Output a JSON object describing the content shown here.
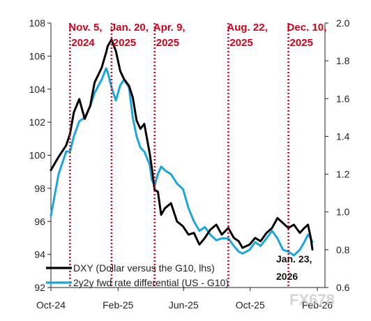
{
  "chart_data": {
    "type": "line",
    "x_ticks": [
      "Oct-24",
      "Feb-25",
      "Jun-25",
      "Oct-25",
      "Feb-26"
    ],
    "x_tick_dates": [
      "2024-10-01",
      "2025-02-01",
      "2025-06-01",
      "2025-10-01",
      "2026-02-01"
    ],
    "x_range": [
      "2024-10-01",
      "2026-02-15"
    ],
    "y_left": {
      "range": [
        92,
        108
      ],
      "ticks": [
        "92",
        "94",
        "96",
        "98",
        "100",
        "102",
        "104",
        "106",
        "108"
      ]
    },
    "y_right": {
      "range": [
        0.6,
        2.0
      ],
      "ticks": [
        "0.6",
        "0.8",
        "1.0",
        "1.2",
        "1.4",
        "1.6",
        "1.8",
        "2.0"
      ]
    },
    "grid": false,
    "legend_position": "bottom-left",
    "series": [
      {
        "name": "DXY (Dollar versus the G10, lhs)",
        "axis": "left",
        "color": "#000000",
        "points": [
          [
            "2024-10-01",
            99.1
          ],
          [
            "2024-10-15",
            99.9
          ],
          [
            "2024-10-29",
            100.6
          ],
          [
            "2024-11-05",
            101.3
          ],
          [
            "2024-11-12",
            102.6
          ],
          [
            "2024-11-22",
            103.4
          ],
          [
            "2024-12-02",
            102.2
          ],
          [
            "2024-12-12",
            103.0
          ],
          [
            "2024-12-20",
            104.4
          ],
          [
            "2025-01-02",
            105.3
          ],
          [
            "2025-01-10",
            106.2
          ],
          [
            "2025-01-13",
            106.6
          ],
          [
            "2025-01-20",
            107.0
          ],
          [
            "2025-01-28",
            106.3
          ],
          [
            "2025-02-05",
            105.1
          ],
          [
            "2025-02-12",
            104.6
          ],
          [
            "2025-02-21",
            104.2
          ],
          [
            "2025-02-28",
            103.5
          ],
          [
            "2025-03-07",
            102.1
          ],
          [
            "2025-03-14",
            101.6
          ],
          [
            "2025-03-21",
            101.9
          ],
          [
            "2025-03-31",
            100.1
          ],
          [
            "2025-04-04",
            99.2
          ],
          [
            "2025-04-09",
            97.9
          ],
          [
            "2025-04-15",
            97.8
          ],
          [
            "2025-04-21",
            96.4
          ],
          [
            "2025-04-28",
            96.8
          ],
          [
            "2025-05-09",
            97.1
          ],
          [
            "2025-05-20",
            96.0
          ],
          [
            "2025-05-31",
            95.7
          ],
          [
            "2025-06-10",
            95.2
          ],
          [
            "2025-06-20",
            95.3
          ],
          [
            "2025-06-30",
            94.6
          ],
          [
            "2025-07-10",
            95.0
          ],
          [
            "2025-07-20",
            95.5
          ],
          [
            "2025-07-31",
            95.8
          ],
          [
            "2025-08-10",
            95.2
          ],
          [
            "2025-08-22",
            95.6
          ],
          [
            "2025-09-01",
            95.0
          ],
          [
            "2025-09-10",
            94.8
          ],
          [
            "2025-09-17",
            94.4
          ],
          [
            "2025-09-30",
            94.6
          ],
          [
            "2025-10-10",
            95.0
          ],
          [
            "2025-10-20",
            94.8
          ],
          [
            "2025-10-31",
            95.3
          ],
          [
            "2025-11-10",
            95.6
          ],
          [
            "2025-11-20",
            96.2
          ],
          [
            "2025-11-30",
            95.9
          ],
          [
            "2025-12-10",
            95.6
          ],
          [
            "2025-12-20",
            95.8
          ],
          [
            "2025-12-31",
            95.3
          ],
          [
            "2026-01-08",
            95.6
          ],
          [
            "2026-01-15",
            95.8
          ],
          [
            "2026-01-20",
            95.0
          ],
          [
            "2026-01-23",
            94.3
          ]
        ]
      },
      {
        "name": "2y2y fwd rate differential (US - G10)",
        "axis": "right",
        "color": "#1ba6d9",
        "points": [
          [
            "2024-10-01",
            0.98
          ],
          [
            "2024-10-15",
            1.2
          ],
          [
            "2024-10-29",
            1.32
          ],
          [
            "2024-11-05",
            1.32
          ],
          [
            "2024-11-12",
            1.4
          ],
          [
            "2024-11-22",
            1.48
          ],
          [
            "2024-12-02",
            1.5
          ],
          [
            "2024-12-12",
            1.56
          ],
          [
            "2024-12-20",
            1.63
          ],
          [
            "2025-01-02",
            1.7
          ],
          [
            "2025-01-10",
            1.76
          ],
          [
            "2025-01-13",
            1.74
          ],
          [
            "2025-01-20",
            1.66
          ],
          [
            "2025-01-28",
            1.59
          ],
          [
            "2025-02-05",
            1.67
          ],
          [
            "2025-02-12",
            1.7
          ],
          [
            "2025-02-21",
            1.66
          ],
          [
            "2025-02-28",
            1.5
          ],
          [
            "2025-03-07",
            1.4
          ],
          [
            "2025-03-14",
            1.34
          ],
          [
            "2025-03-21",
            1.32
          ],
          [
            "2025-03-31",
            1.25
          ],
          [
            "2025-04-04",
            1.17
          ],
          [
            "2025-04-09",
            1.14
          ],
          [
            "2025-04-15",
            1.2
          ],
          [
            "2025-04-21",
            1.24
          ],
          [
            "2025-04-28",
            1.22
          ],
          [
            "2025-05-09",
            1.2
          ],
          [
            "2025-05-20",
            1.15
          ],
          [
            "2025-05-31",
            1.12
          ],
          [
            "2025-06-10",
            1.02
          ],
          [
            "2025-06-20",
            0.95
          ],
          [
            "2025-06-30",
            0.9
          ],
          [
            "2025-07-10",
            0.92
          ],
          [
            "2025-07-20",
            0.88
          ],
          [
            "2025-07-31",
            0.85
          ],
          [
            "2025-08-10",
            0.86
          ],
          [
            "2025-08-22",
            0.86
          ],
          [
            "2025-09-01",
            0.82
          ],
          [
            "2025-09-10",
            0.79
          ],
          [
            "2025-09-17",
            0.78
          ],
          [
            "2025-09-30",
            0.8
          ],
          [
            "2025-10-10",
            0.84
          ],
          [
            "2025-10-20",
            0.82
          ],
          [
            "2025-10-31",
            0.86
          ],
          [
            "2025-11-10",
            0.9
          ],
          [
            "2025-11-20",
            0.86
          ],
          [
            "2025-11-30",
            0.8
          ],
          [
            "2025-12-10",
            0.79
          ],
          [
            "2025-12-20",
            0.77
          ],
          [
            "2025-12-31",
            0.8
          ],
          [
            "2026-01-08",
            0.84
          ],
          [
            "2026-01-15",
            0.88
          ],
          [
            "2026-01-20",
            0.86
          ],
          [
            "2026-01-23",
            0.84
          ]
        ]
      }
    ],
    "events": [
      {
        "date": "2024-11-05",
        "label_line1": "Nov. 5,",
        "label_line2": "2024"
      },
      {
        "date": "2025-01-20",
        "label_line1": "Jan. 20,",
        "label_line2": "2025"
      },
      {
        "date": "2025-04-09",
        "label_line1": "Apr. 9,",
        "label_line2": "2025"
      },
      {
        "date": "2025-08-22",
        "label_line1": "Aug. 22,",
        "label_line2": "2025"
      },
      {
        "date": "2025-12-10",
        "label_line1": "Dec. 10,",
        "label_line2": "2025"
      }
    ],
    "annotation": {
      "line1": "Jan. 23,",
      "line2": "2026"
    },
    "event_color": "#d0021b"
  },
  "watermark": "FX678"
}
